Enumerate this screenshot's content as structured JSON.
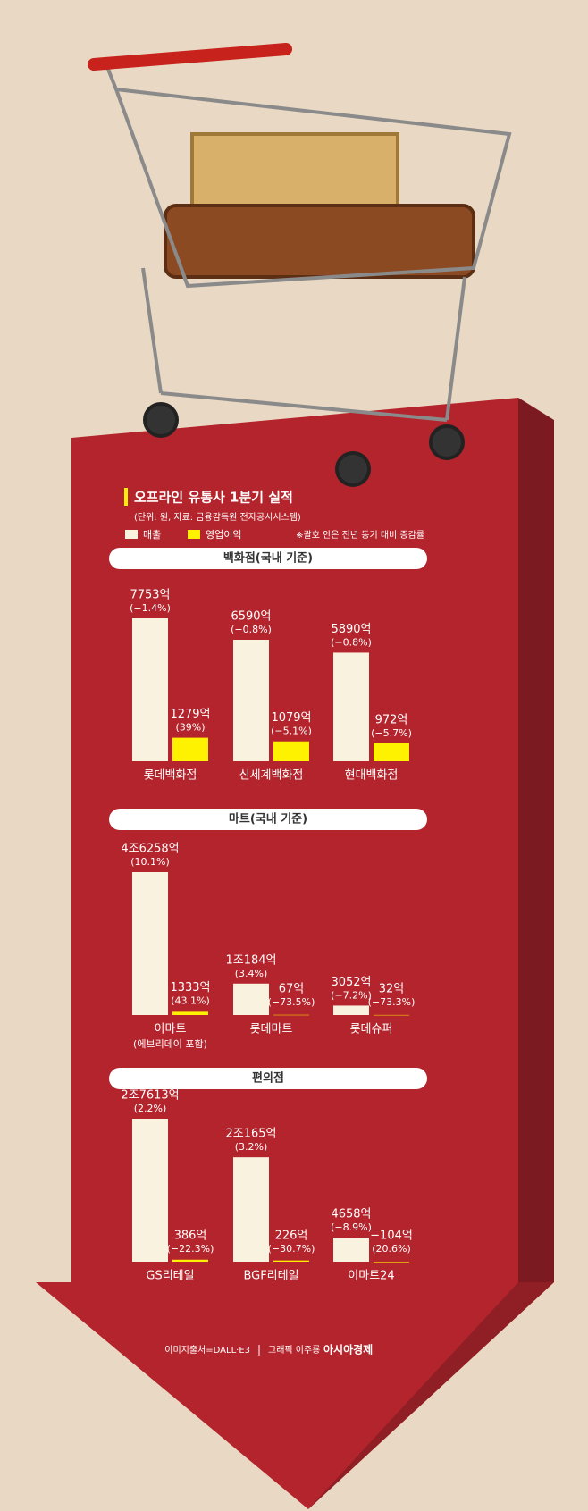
{
  "title": "오프라인 유통사 1분기 실적",
  "subtitle": "(단위: 원, 자료: 금융감독원 전자공시시스템)",
  "note": "※괄호 안은 전년 동기 대비 증감률",
  "image_credit": "이미지출처=DALL·E3",
  "graphic_credit": "그래픽 이주룡",
  "publisher": "아시아경제",
  "chart_data": [
    {
      "type": "bar",
      "title": "백화점(국내 기준)",
      "categories": [
        "롯데백화점",
        "신세계백화점",
        "현대백화점"
      ],
      "series": [
        {
          "name": "매출",
          "color": "#f8f2df",
          "values": [
            7753,
            6590,
            5890
          ],
          "value_labels": [
            "7753억",
            "6590억",
            "5890억"
          ],
          "change_labels": [
            "(−1.4%)",
            "(−0.8%)",
            "(−0.8%)"
          ]
        },
        {
          "name": "영업이익",
          "color": "#fff200",
          "values": [
            1279,
            1079,
            972
          ],
          "value_labels": [
            "1279억",
            "1079억",
            "972억"
          ],
          "change_labels": [
            "(39%)",
            "(−5.1%)",
            "(−5.7%)"
          ]
        }
      ]
    },
    {
      "type": "bar",
      "title": "마트(국내 기준)",
      "categories": [
        "이마트",
        "롯데마트",
        "롯데슈퍼"
      ],
      "category_notes": [
        "(에브리데이 포함)",
        null,
        null
      ],
      "series": [
        {
          "name": "매출",
          "color": "#f8f2df",
          "values": [
            46258,
            10184,
            3052
          ],
          "value_labels": [
            "4조6258억",
            "1조184억",
            "3052억"
          ],
          "change_labels": [
            "(10.1%)",
            "(3.4%)",
            "(−7.2%)"
          ]
        },
        {
          "name": "영업이익",
          "color": "#fff200",
          "values": [
            1333,
            67,
            32
          ],
          "value_labels": [
            "1333억",
            "67억",
            "32억"
          ],
          "change_labels": [
            "(43.1%)",
            "(−73.5%)",
            "(−73.3%)"
          ]
        }
      ]
    },
    {
      "type": "bar",
      "title": "편의점",
      "categories": [
        "GS리테일",
        "BGF리테일",
        "이마트24"
      ],
      "series": [
        {
          "name": "매출",
          "color": "#f8f2df",
          "values": [
            27613,
            20165,
            4658
          ],
          "value_labels": [
            "2조7613억",
            "2조165억",
            "4658억"
          ],
          "change_labels": [
            "(2.2%)",
            "(3.2%)",
            "(−8.9%)"
          ]
        },
        {
          "name": "영업이익",
          "color": "#fff200",
          "values": [
            386,
            226,
            -104
          ],
          "value_labels": [
            "386억",
            "226억",
            "−104억"
          ],
          "change_labels": [
            "(−22.3%)",
            "(−30.7%)",
            "(20.6%)"
          ]
        }
      ]
    }
  ]
}
